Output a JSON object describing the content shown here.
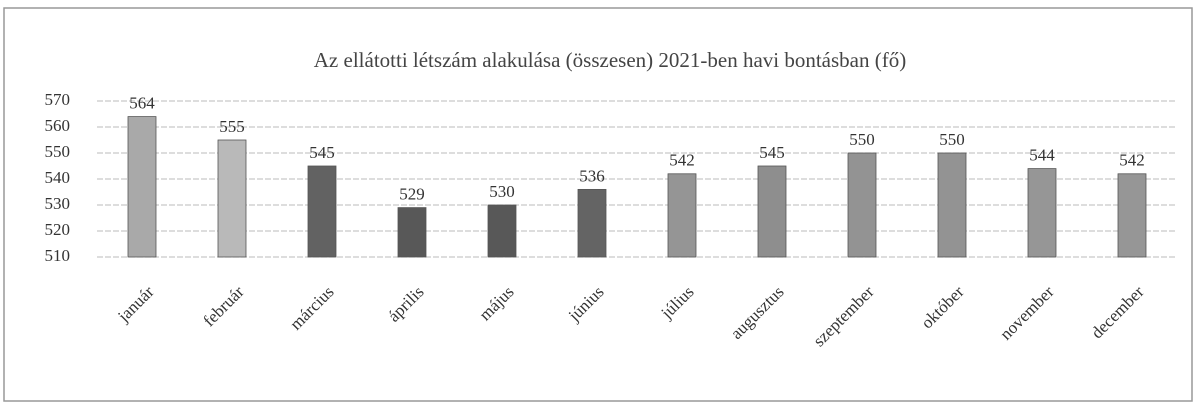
{
  "chart_data": {
    "type": "bar",
    "title": "Az ellátotti létszám alakulása (összesen) 2021-ben havi bontásban (fő)",
    "categories": [
      "január",
      "február",
      "március",
      "április",
      "május",
      "június",
      "július",
      "augusztus",
      "szeptember",
      "október",
      "november",
      "december"
    ],
    "values": [
      564,
      555,
      545,
      529,
      530,
      536,
      542,
      545,
      550,
      550,
      544,
      542
    ],
    "colors": [
      "#a9a9a9",
      "#b9b9b9",
      "#626262",
      "#585858",
      "#585858",
      "#646464",
      "#959595",
      "#8e8e8e",
      "#939393",
      "#939393",
      "#969696",
      "#969696"
    ],
    "ylim": [
      510,
      570
    ],
    "yticks": [
      510,
      520,
      530,
      540,
      550,
      560,
      570
    ],
    "grid": true
  }
}
